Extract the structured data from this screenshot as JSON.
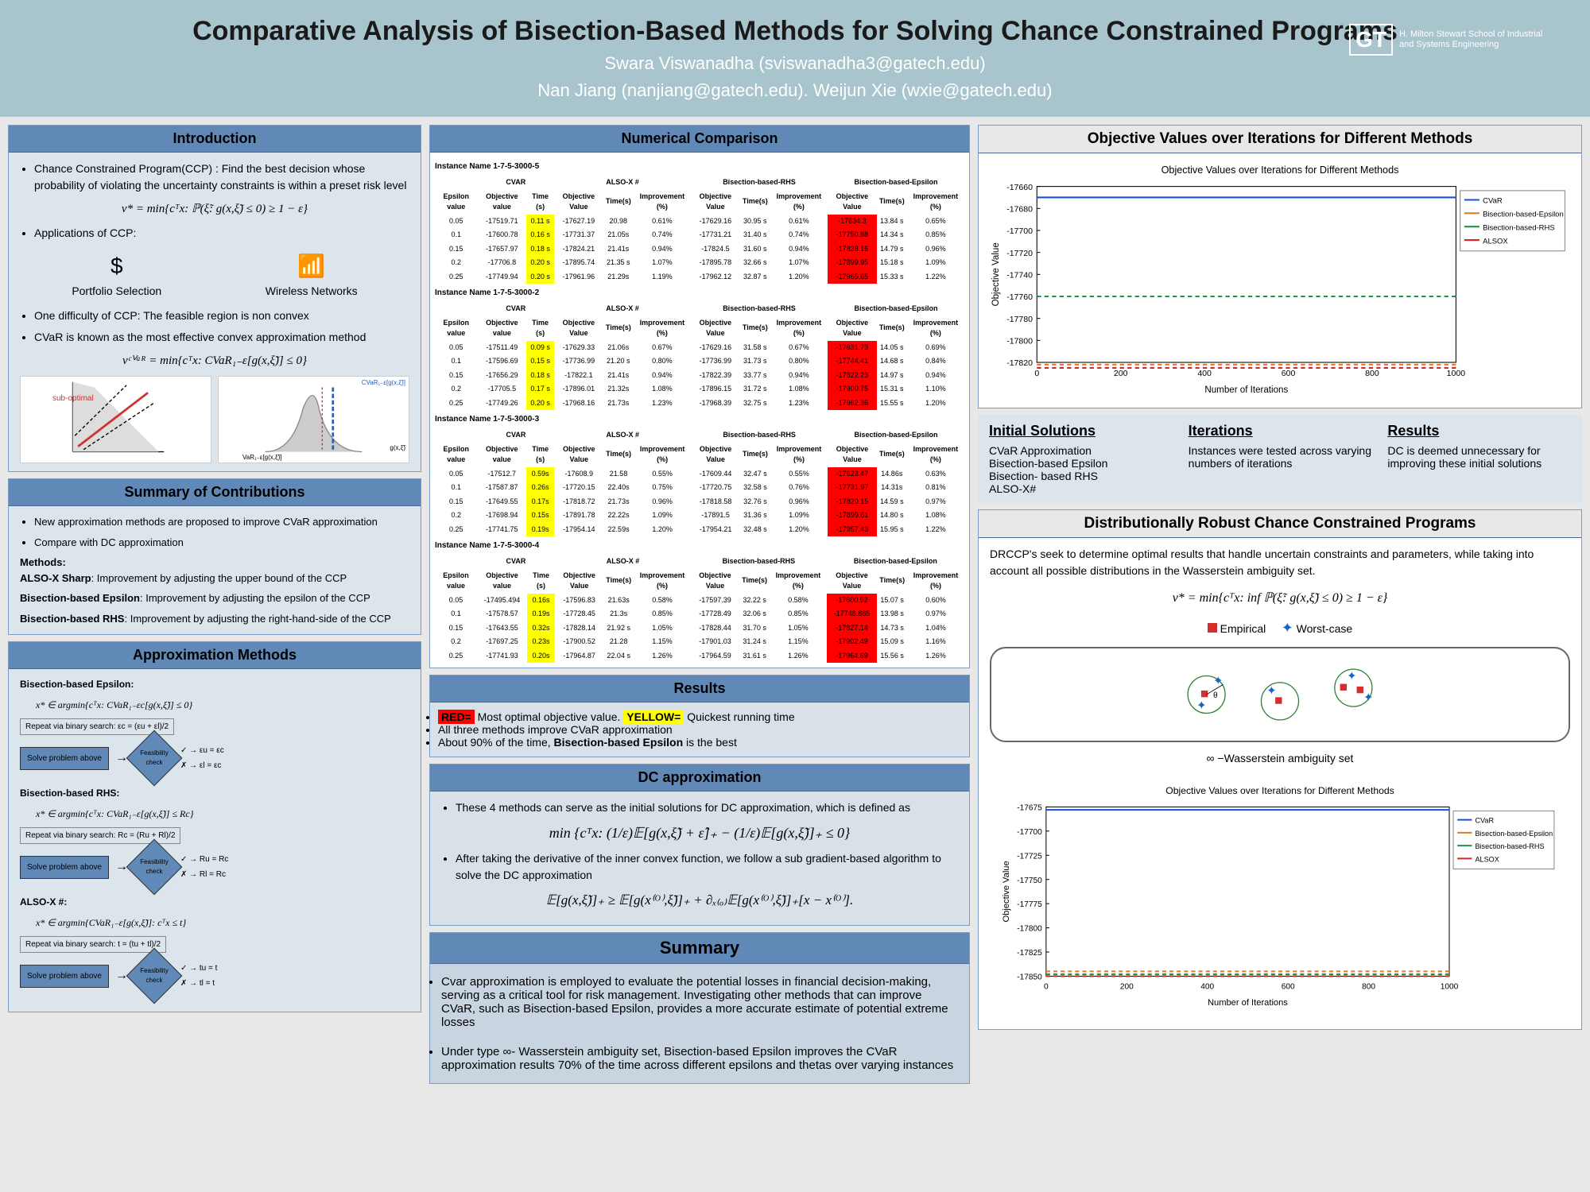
{
  "header": {
    "title": "Comparative Analysis of Bisection-Based Methods for Solving Chance Constrained Programs",
    "author1": "Swara Viswanadha (sviswanadha3@gatech.edu)",
    "author2": "Nan Jiang (nanjiang@gatech.edu). Weijun Xie (wxie@gatech.edu)",
    "logo_text": "H. Milton Stewart School of Industrial and Systems Engineering",
    "logo_mark": "GT"
  },
  "intro": {
    "title": "Introduction",
    "b1": "Chance Constrained Program(CCP) : Find the best decision whose probability of violating the uncertainty constraints is within a preset risk level",
    "formula1": "v* = min{cᵀx: ℙ(ξ̃: g(x,ξ̃) ≤ 0) ≥ 1 − ε}",
    "b2": "Applications of CCP:",
    "app1": "Portfolio Selection",
    "app2": "Wireless Networks",
    "b3": "One difficulty of CCP: The feasible region is non convex",
    "b4": "CVaR is known as the most effective convex approximation method",
    "formula2": "vᶜⱽᵃᴿ = min{cᵀx: CVaR₁₋ε[g(x,ξ̃)] ≤ 0}",
    "chart1_label": "sub-optimal",
    "chart2_label1": "CVaR₁₋ε[g(x,ξ̃)]",
    "chart2_label2": "g(x,ξ̃)",
    "chart2_label3": "VaR₁₋ε[g(x,ξ̃)]"
  },
  "contrib": {
    "title": "Summary of Contributions",
    "b1": "New approximation methods are proposed to improve CVaR approximation",
    "b2": "Compare with DC approximation",
    "methods_label": "Methods:",
    "m1": "ALSO-X Sharp",
    "m1d": ": Improvement by adjusting the upper bound of the CCP",
    "m2": "Bisection-based Epsilon",
    "m2d": ": Improvement by adjusting the epsilon of the CCP",
    "m3": "Bisection-based RHS",
    "m3d": ": Improvement by adjusting the right-hand-side of the CCP"
  },
  "approx": {
    "title": "Approximation Methods",
    "e1_title": "Bisection-based Epsilon:",
    "e1_formula": "x* ∈ argmin{cᵀx: CVaR₁₋εc[g(x,ξ̃)] ≤ 0}",
    "e1_repeat": "Repeat via binary search: εc = (εu + εl)/2",
    "e1_up": "εu = εc",
    "e1_low": "εl = εc",
    "r_title": "Bisection-based RHS:",
    "r_formula": "x* ∈ argmin{cᵀx: CVaR₁₋ε[g(x,ξ̃)] ≤ Rc}",
    "r_repeat": "Repeat via binary search: Rc = (Ru + Rl)/2",
    "r_up": "Ru = Rc",
    "r_low": "Rl = Rc",
    "a_title": "ALSO-X #:",
    "a_formula": "x* ∈ argmin{CVaR₁₋ε[g(x,ξ̃)]: cᵀx ≤ t}",
    "a_repeat": "Repeat via binary search: t = (tu + tl)/2",
    "a_up": "tu = t",
    "a_low": "tl = t",
    "solve": "Solve problem above",
    "feas": "Feasibility check"
  },
  "numcomp": {
    "title": "Numerical Comparison",
    "headers_group": [
      "CVAR",
      "ALSO-X #",
      "Bisection-based-RHS",
      "Bisection-based-Epsilon"
    ],
    "col_headers": [
      "Epsilon value",
      "Objective value",
      "Time (s)",
      "Objective Value",
      "Time(s)",
      "Improvement (%)",
      "Objective Value",
      "Time(s)",
      "Improvement (%)",
      "Objective Value",
      "Time(s)",
      "Improvement (%)"
    ],
    "instances": [
      {
        "name": "Instance Name  1-7-5-3000-5",
        "rows": [
          [
            "0.05",
            "-17519.71",
            "0.11 s",
            "-17627.19",
            "20.98",
            "0.61%",
            "-17629.16",
            "30.95 s",
            "0.61%",
            "-17634.3",
            "13.84 s",
            "0.65%"
          ],
          [
            "0.1",
            "-17600.78",
            "0.16 s",
            "-17731.37",
            "21.05s",
            "0.74%",
            "-17731.21",
            "31.40 s",
            "0.74%",
            "-17750.88",
            "14.34 s",
            "0.85%"
          ],
          [
            "0.15",
            "-17657.97",
            "0.18 s",
            "-17824.21",
            "21.41s",
            "0.94%",
            "-17824.5",
            "31.60 s",
            "0.94%",
            "-17828.16",
            "14.79 s",
            "0.96%"
          ],
          [
            "0.2",
            "-17706.8",
            "0.20 s",
            "-17895.74",
            "21.35 s",
            "1.07%",
            "-17895.78",
            "32.66 s",
            "1.07%",
            "-17899.95",
            "15.18 s",
            "1.09%"
          ],
          [
            "0.25",
            "-17749.94",
            "0.20 s",
            "-17961.96",
            "21.29s",
            "1.19%",
            "-17962.12",
            "32.87 s",
            "1.20%",
            "-17965.65",
            "15.33 s",
            "1.22%"
          ]
        ]
      },
      {
        "name": "Instance Name  1-7-5-3000-2",
        "rows": [
          [
            "0.05",
            "-17511.49",
            "0.09 s",
            "-17629.33",
            "21.06s",
            "0.67%",
            "-17629.16",
            "31.58 s",
            "0.67%",
            "-17631.73",
            "14.05 s",
            "0.69%"
          ],
          [
            "0.1",
            "-17596.69",
            "0.15 s",
            "-17736.99",
            "21.20 s",
            "0.80%",
            "-17736.99",
            "31.73 s",
            "0.80%",
            "-17744.41",
            "14.68 s",
            "0.84%"
          ],
          [
            "0.15",
            "-17656.29",
            "0.18 s",
            "-17822.1",
            "21.41s",
            "0.94%",
            "-17822.39",
            "33.77 s",
            "0.94%",
            "-17822.23",
            "14.97 s",
            "0.94%"
          ],
          [
            "0.2",
            "-17705.5",
            "0.17 s",
            "-17896.01",
            "21.32s",
            "1.08%",
            "-17896.15",
            "31.72 s",
            "1.08%",
            "-17900.75",
            "15.31 s",
            "1.10%"
          ],
          [
            "0.25",
            "-17749.26",
            "0.20 s",
            "-17968.16",
            "21.73s",
            "1.23%",
            "-17968.39",
            "32.75 s",
            "1.23%",
            "-17962.36",
            "15.55 s",
            "1.20%"
          ]
        ]
      },
      {
        "name": "Instance Name  1-7-5-3000-3",
        "rows": [
          [
            "0.05",
            "-17512.7",
            "0.59s",
            "-17608.9",
            "21.58",
            "0.55%",
            "-17609.44",
            "32.47 s",
            "0.55%",
            "-17623.47",
            "14.86s",
            "0.63%"
          ],
          [
            "0.1",
            "-17587.87",
            "0.26s",
            "-17720.15",
            "22.40s",
            "0.75%",
            "-17720.75",
            "32.58 s",
            "0.76%",
            "-17731.97",
            "14.31s",
            "0.81%"
          ],
          [
            "0.15",
            "-17649.55",
            "0.17s",
            "-17818.72",
            "21.73s",
            "0.96%",
            "-17818.58",
            "32.76 s",
            "0.96%",
            "-17820.15",
            "14.59 s",
            "0.97%"
          ],
          [
            "0.2",
            "-17698.94",
            "0.15s",
            "-17891.78",
            "22.22s",
            "1.09%",
            "-17891.5",
            "31.36 s",
            "1.09%",
            "-17899.61",
            "14.80 s",
            "1.08%"
          ],
          [
            "0.25",
            "-17741.75",
            "0.19s",
            "-17954.14",
            "22.59s",
            "1.20%",
            "-17954.21",
            "32.48 s",
            "1.20%",
            "-17957.43",
            "15.95 s",
            "1.22%"
          ]
        ]
      },
      {
        "name": "Instance Name  1-7-5-3000-4",
        "rows": [
          [
            "0.05",
            "-17495.494",
            "0.16s",
            "-17596.83",
            "21.63s",
            "0.58%",
            "-17597.39",
            "32.22 s",
            "0.58%",
            "-17600.92",
            "15.07 s",
            "0.60%"
          ],
          [
            "0.1",
            "-17578.57",
            "0.19s",
            "-17728.45",
            "21.3s",
            "0.85%",
            "-17728.49",
            "32.06 s",
            "0.85%",
            "-17748.885",
            "13.98 s",
            "0.97%"
          ],
          [
            "0.15",
            "-17643.55",
            "0.32s",
            "-17828.14",
            "21.92 s",
            "1.05%",
            "-17828.44",
            "31.70 s",
            "1.05%",
            "-17827.14",
            "14.73 s",
            "1.04%"
          ],
          [
            "0.2",
            "-17697.25",
            "0.23s",
            "-17900.52",
            "21.28",
            "1.15%",
            "-17901.03",
            "31.24 s",
            "1.15%",
            "-17902.49",
            "15.09 s",
            "1.16%"
          ],
          [
            "0.25",
            "-17741.93",
            "0.20s",
            "-17964.87",
            "22.04 s",
            "1.26%",
            "-17964.59",
            "31.61 s",
            "1.26%",
            "-17964.69",
            "15.56 s",
            "1.26%"
          ]
        ]
      }
    ]
  },
  "results": {
    "title": "Results",
    "b1a": "RED=",
    "b1b": " Most optimal objective value.  ",
    "b1c": "YELLOW=",
    "b1d": " Quickest running time",
    "b2": "All three methods improve CVaR approximation",
    "b3": "About 90% of the time, Bisection-based Epsilon is the best"
  },
  "dc": {
    "title": "DC approximation",
    "b1": "These 4 methods can serve as the initial solutions for DC approximation, which is defined as",
    "formula1": "min {cᵀx: (1/ε)𝔼[g(x,ξ̃) + ε̂]₊ − (1/ε)𝔼[g(x,ξ̃)]₊ ≤ 0}",
    "b2": "After taking the derivative of the inner convex function, we follow a sub gradient-based algorithm to solve the DC approximation",
    "formula2": "𝔼[g(x,ξ̃)]₊ ≥ 𝔼[g(x⁽ᴼ⁾,ξ̃)]₊ + ∂ₓ₍ₒ₎𝔼[g(x⁽ᴼ⁾,ξ̃)]₊[x − x⁽ᴼ⁾]."
  },
  "summary": {
    "title": "Summary",
    "b1": "Cvar approximation is employed to evaluate the potential losses in financial decision-making, serving as a critical tool for risk management. Investigating other methods that can improve CVaR, such as Bisection-based Epsilon, provides a more accurate estimate of potential extreme losses",
    "b2": "Under type ∞- Wasserstein ambiguity set, Bisection-based Epsilon improves the CVaR approximation results  70% of the time across different epsilons and thetas over varying instances"
  },
  "objvals": {
    "title": "Objective Values over Iterations for Different Methods",
    "chart_title": "Objective Values over Iterations for Different Methods",
    "ylabel": "Objective Value",
    "xlabel": "Number of Iterations",
    "yticks": [
      "-17660",
      "-17680",
      "-17700",
      "-17720",
      "-17740",
      "-17760",
      "-17780",
      "-17800",
      "-17820"
    ],
    "xticks": [
      "0",
      "200",
      "400",
      "600",
      "800",
      "1000"
    ],
    "legend": [
      "CVaR",
      "Bisection-based-Epsilon",
      "Bisection-based-RHS",
      "ALSOX"
    ],
    "colors": {
      "cvar": "#1f4fd6",
      "bbe": "#e07b1f",
      "bbr": "#1a9641",
      "alsox": "#d62728"
    },
    "cvar_y": -17670,
    "bbe_y": -17822,
    "bbr_y": -17760,
    "alsox_y": -17825
  },
  "threecol": {
    "c1_title": "Initial Solutions",
    "c1_body": "CVaR Approximation\nBisection-based Epsilon\nBisection- based RHS\nALSO-X#",
    "c2_title": "Iterations",
    "c2_body": "Instances were tested across varying numbers of iterations",
    "c3_title": "Results",
    "c3_body": "DC is deemed unnecessary for improving these initial solutions"
  },
  "drccp": {
    "title": "Distributionally Robust Chance Constrained Programs",
    "body": "DRCCP's seek to determine optimal results that handle uncertain constraints and parameters, while taking into account all possible distributions in the Wasserstein ambiguity set.",
    "formula": "v* = min{cᵀx: inf ℙ(ξ̃: g(x,ξ̃) ≤ 0) ≥ 1 − ε}",
    "emp_label": "Empirical",
    "wc_label": "Worst-case",
    "amb_label": "∞ −Wasserstein ambiguity set",
    "chart2_title": "Objective Values over Iterations for Different Methods",
    "chart2_yticks": [
      "-17675",
      "-17700",
      "-17725",
      "-17750",
      "-17775",
      "-17800",
      "-17825",
      "-17850"
    ],
    "chart2_xticks": [
      "0",
      "200",
      "400",
      "600",
      "800",
      "1000"
    ]
  }
}
